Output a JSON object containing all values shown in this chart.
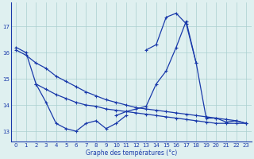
{
  "background": "#dff0f0",
  "grid_color": "#aacfcf",
  "line_color": "#1a3aaa",
  "xlabel": "Graphe des températures (°c)",
  "ylim": [
    12.6,
    17.9
  ],
  "xlim": [
    -0.5,
    23.5
  ],
  "yticks": [
    13,
    14,
    15,
    16,
    17
  ],
  "xticks": [
    0,
    1,
    2,
    3,
    4,
    5,
    6,
    7,
    8,
    9,
    10,
    11,
    12,
    13,
    14,
    15,
    16,
    17,
    18,
    19,
    20,
    21,
    22,
    23
  ],
  "seriesA_x": [
    0,
    1,
    2,
    3,
    4,
    5,
    6,
    7,
    8,
    9,
    10,
    11
  ],
  "seriesA_y": [
    16.2,
    16.0,
    14.8,
    14.1,
    13.3,
    13.1,
    13.0,
    13.3,
    13.4,
    13.1,
    13.3,
    13.6
  ],
  "seriesB_x": [
    0,
    1,
    2,
    3,
    4,
    5,
    6,
    7,
    8,
    9,
    10,
    11,
    12,
    13,
    14,
    15,
    16,
    17,
    18,
    19,
    20,
    21,
    22,
    23
  ],
  "seriesB_y": [
    16.1,
    15.9,
    15.6,
    15.4,
    15.1,
    14.9,
    14.7,
    14.5,
    14.35,
    14.2,
    14.1,
    14.0,
    13.9,
    13.85,
    13.8,
    13.75,
    13.7,
    13.65,
    13.6,
    13.55,
    13.5,
    13.45,
    13.4,
    13.3
  ],
  "seriesC_x": [
    2,
    3,
    4,
    5,
    6,
    7,
    8,
    9,
    10,
    11,
    12,
    13,
    14,
    15,
    16,
    17,
    18,
    19,
    20,
    21,
    22,
    23
  ],
  "seriesC_y": [
    14.8,
    14.6,
    14.4,
    14.25,
    14.1,
    14.0,
    13.95,
    13.85,
    13.8,
    13.75,
    13.7,
    13.65,
    13.6,
    13.55,
    13.5,
    13.45,
    13.4,
    13.35,
    13.3,
    13.3,
    13.3,
    13.3
  ],
  "seriesD_x": [
    10,
    11,
    12,
    13,
    14,
    15,
    16,
    17,
    18,
    19,
    20,
    21,
    22,
    23
  ],
  "seriesD_y": [
    13.6,
    13.75,
    13.85,
    13.95,
    14.8,
    15.3,
    16.2,
    17.2,
    15.6,
    13.5,
    13.5,
    13.35,
    13.4,
    13.3
  ],
  "seriesE_x": [
    13,
    14,
    15,
    16,
    17,
    18
  ],
  "seriesE_y": [
    16.1,
    16.3,
    17.35,
    17.5,
    17.1,
    15.6
  ]
}
